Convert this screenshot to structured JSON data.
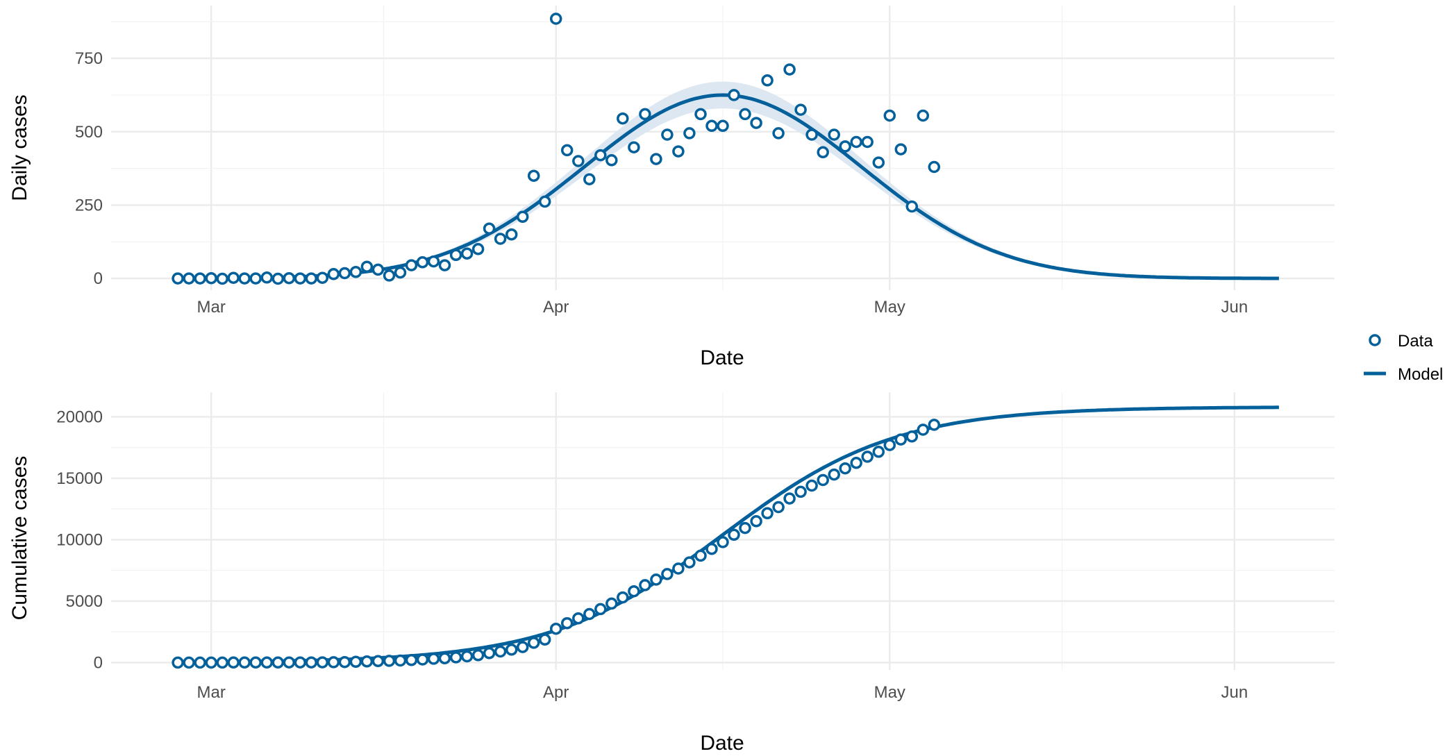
{
  "chart_data": [
    {
      "type": "line",
      "panel": "daily",
      "ylabel": "Daily cases",
      "xlabel": "Date",
      "x_ticks": [
        "Mar",
        "Apr",
        "May",
        "Jun"
      ],
      "x_tick_dates": [
        "2020-03-01",
        "2020-04-01",
        "2020-05-01",
        "2020-06-01"
      ],
      "y_ticks": [
        0,
        250,
        500,
        750
      ],
      "xlim": [
        "2020-02-21",
        "2020-06-10"
      ],
      "ylim": [
        -40,
        930
      ],
      "grid": true,
      "data_start_date": "2020-02-27",
      "series": [
        {
          "name": "Data",
          "kind": "points",
          "values": [
            0,
            0,
            0,
            1,
            -1,
            2,
            0,
            0,
            3,
            -1,
            1,
            0,
            0,
            2,
            15,
            18,
            22,
            40,
            30,
            10,
            20,
            45,
            55,
            58,
            45,
            80,
            85,
            100,
            170,
            135,
            150,
            210,
            350,
            262,
            885,
            437,
            400,
            338,
            420,
            403,
            545,
            447,
            560,
            407,
            490,
            433,
            495,
            560,
            520,
            520,
            625,
            560,
            530,
            675,
            495,
            712,
            575,
            490,
            430,
            490,
            450,
            465,
            465,
            395,
            555,
            440,
            245,
            555,
            380
          ]
        },
        {
          "name": "Model",
          "kind": "line",
          "model": {
            "peak": 625,
            "peak_date": "2020-04-16",
            "sigma_days": 12.5,
            "start_date": "2020-02-27",
            "end_date": "2020-06-05",
            "band": 0.07
          }
        }
      ]
    },
    {
      "type": "line",
      "panel": "cumulative",
      "ylabel": "Cumulative cases",
      "xlabel": "Date",
      "x_ticks": [
        "Mar",
        "Apr",
        "May",
        "Jun"
      ],
      "x_tick_dates": [
        "2020-03-01",
        "2020-04-01",
        "2020-05-01",
        "2020-06-01"
      ],
      "y_ticks": [
        0,
        5000,
        10000,
        15000,
        20000
      ],
      "xlim": [
        "2020-02-21",
        "2020-06-10"
      ],
      "ylim": [
        -600,
        22000
      ],
      "grid": true,
      "data_start_date": "2020-02-27",
      "series": [
        {
          "name": "Data",
          "kind": "points",
          "values": [
            0,
            0,
            0,
            1,
            1,
            2,
            3,
            3,
            5,
            6,
            8,
            10,
            12,
            15,
            25,
            40,
            60,
            90,
            120,
            140,
            160,
            200,
            250,
            310,
            350,
            420,
            500,
            600,
            770,
            900,
            1050,
            1260,
            1610,
            1870,
            2750,
            3200,
            3600,
            3950,
            4350,
            4800,
            5300,
            5800,
            6300,
            6750,
            7200,
            7650,
            8150,
            8700,
            9250,
            9800,
            10400,
            10950,
            11500,
            12150,
            12650,
            13350,
            13900,
            14400,
            14850,
            15300,
            15800,
            16250,
            16750,
            17150,
            17700,
            18150,
            18400,
            18950,
            19350
          ]
        },
        {
          "name": "Model",
          "kind": "line",
          "model": {
            "asymptote": 20800,
            "mid_date": "2020-04-16",
            "sigma_days": 12.5,
            "start_date": "2020-02-27",
            "end_date": "2020-06-05"
          }
        }
      ]
    }
  ],
  "legend": {
    "position": "right",
    "items": [
      {
        "label": "Data",
        "symbol": "open-circle"
      },
      {
        "label": "Model",
        "symbol": "line"
      }
    ]
  },
  "colors": {
    "series": "#04609b",
    "band": "#dce7f2",
    "grid_major": "#ebebeb",
    "grid_minor": "#f2f2f2",
    "tick_text": "#4d4d4d",
    "title_text": "#000000"
  }
}
